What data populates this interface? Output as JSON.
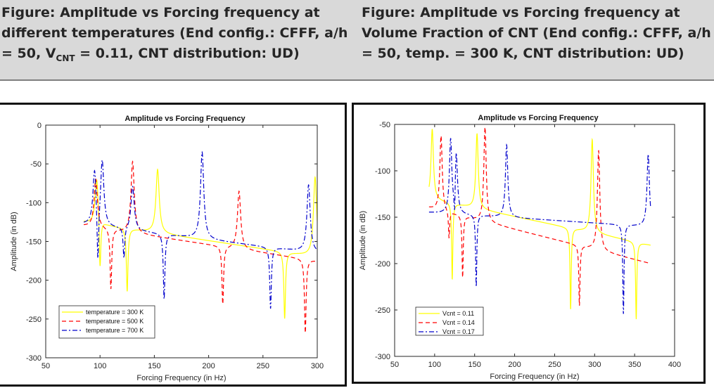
{
  "captions": {
    "left": {
      "pre": "Figure: Amplitude vs Forcing frequency at different temperatures (End config.: CFFF, a/h = 50, V",
      "sub": "CNT",
      "post": " = 0.11, CNT distribution: UD)"
    },
    "right": "Figure: Amplitude vs Forcing frequency at Volume Fraction of CNT (End config.: CFFF, a/h = 50, temp. = 300 K, CNT distribution: UD)"
  },
  "chart_data": [
    {
      "type": "line",
      "title": "Amplitude vs Forcing Frequency",
      "xlabel": "Forcing Frequency (in Hz)",
      "ylabel": "Amplitude (in dB)",
      "xlim": [
        50,
        300
      ],
      "ylim": [
        -300,
        0
      ],
      "xticks": [
        50,
        100,
        150,
        200,
        250,
        300
      ],
      "yticks": [
        0,
        -50,
        -100,
        -150,
        -200,
        -250,
        -300
      ],
      "legend_position": "bottom-left",
      "x_range": [
        85,
        300
      ],
      "series": [
        {
          "name": "temperature = 300 K",
          "color": "#ffff00",
          "dash": "solid",
          "base_start": -125,
          "base_end": -170,
          "resonances": [
            [
              97,
              -65
            ],
            [
              153,
              -57
            ],
            [
              298,
              -67
            ]
          ],
          "antiresonances": [
            [
              100,
              -198
            ],
            [
              125,
              -215
            ],
            [
              270,
              -250
            ]
          ]
        },
        {
          "name": "temperature = 500 K",
          "color": "#ff0000",
          "dash": "dashed",
          "base_start": -130,
          "base_end": -175,
          "resonances": [
            [
              96,
              -70
            ],
            [
              130,
              -47
            ],
            [
              228,
              -85
            ]
          ],
          "antiresonances": [
            [
              98,
              -130
            ],
            [
              110,
              -213
            ],
            [
              213,
              -232
            ],
            [
              289,
              -268
            ]
          ]
        },
        {
          "name": "temperature = 700 K",
          "color": "#0000cc",
          "dash": "dashdot",
          "base_start": -128,
          "base_end": -165,
          "resonances": [
            [
              95,
              -58
            ],
            [
              102,
              -46
            ],
            [
              130,
              -79
            ],
            [
              194,
              -35
            ],
            [
              292,
              -77
            ]
          ],
          "antiresonances": [
            [
              98,
              -205
            ],
            [
              122,
              -175
            ],
            [
              159,
              -225
            ],
            [
              257,
              -237
            ]
          ]
        }
      ]
    },
    {
      "type": "line",
      "title": "Amplitude vs Forcing Frequency",
      "xlabel": "Forcing Frequency (in Hz)",
      "ylabel": "Amplitude (in dB)",
      "xlim": [
        50,
        400
      ],
      "ylim": [
        -300,
        -50
      ],
      "xticks": [
        50,
        100,
        150,
        200,
        250,
        300,
        350,
        400
      ],
      "yticks": [
        -50,
        -100,
        -150,
        -200,
        -250,
        -300
      ],
      "legend_position": "bottom-left",
      "x_range": [
        93,
        370
      ],
      "series": [
        {
          "name": "Vcnt = 0.11",
          "color": "#ffff00",
          "dash": "solid",
          "base_start": -130,
          "base_end": -180,
          "resonances": [
            [
              97,
              -55
            ],
            [
              153,
              -60
            ],
            [
              297,
              -66
            ]
          ],
          "antiresonances": [
            [
              122,
              -218
            ],
            [
              270,
              -250
            ],
            [
              352,
              -260
            ]
          ]
        },
        {
          "name": "Vcnt = 0.14",
          "color": "#ff0000",
          "dash": "dashed",
          "base_start": -140,
          "base_end": -200,
          "resonances": [
            [
              108,
              -62
            ],
            [
              163,
              -53
            ],
            [
              305,
              -78
            ]
          ],
          "antiresonances": [
            [
              118,
              -175
            ],
            [
              135,
              -216
            ],
            [
              281,
              -246
            ]
          ]
        },
        {
          "name": "Vcnt = 0.17",
          "color": "#0000cc",
          "dash": "dashdot",
          "base_start": -145,
          "base_end": -160,
          "resonances": [
            [
              120,
              -68
            ],
            [
              127,
              -80
            ],
            [
              190,
              -72
            ],
            [
              367,
              -82
            ]
          ],
          "antiresonances": [
            [
              125,
              -180
            ],
            [
              152,
              -226
            ],
            [
              336,
              -255
            ]
          ]
        }
      ]
    }
  ]
}
